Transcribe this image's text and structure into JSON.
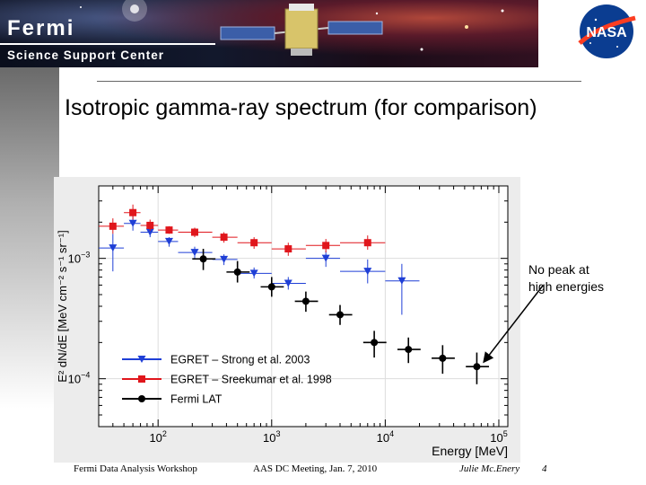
{
  "header": {
    "brand_title": "Fermi",
    "brand_subtitle": "Science Support Center",
    "logo_icon": "nasa-logo",
    "logo_text": "NASA"
  },
  "slide": {
    "title": "Isotropic gamma-ray spectrum (for comparison)",
    "annotation_line1": "No peak at",
    "annotation_line2": "high energies"
  },
  "footer": {
    "left": "Fermi Data Analysis Workshop",
    "center": "AAS DC Meeting,  Jan. 7, 2010",
    "author": "Julie Mc.Enery",
    "page": "4"
  },
  "chart_data": {
    "type": "scatter",
    "title": "",
    "xlabel": "Energy [MeV]",
    "ylabel": "E² dN/dE [MeV cm⁻² s⁻¹ sr⁻¹]",
    "x_scale": "log",
    "y_scale": "log",
    "xlim": [
      30,
      120000
    ],
    "ylim": [
      4e-05,
      0.004
    ],
    "x_ticks": [
      {
        "value": 100,
        "base": "10",
        "exp": "2"
      },
      {
        "value": 1000,
        "base": "10",
        "exp": "3"
      },
      {
        "value": 10000,
        "base": "10",
        "exp": "4"
      },
      {
        "value": 100000,
        "base": "10",
        "exp": "5"
      }
    ],
    "y_ticks": [
      {
        "value": 0.001,
        "base": "10",
        "exp": "−3"
      },
      {
        "value": 0.0001,
        "base": "10",
        "exp": "−4"
      }
    ],
    "legend_position": "bottom-left",
    "series": [
      {
        "name": "EGRET – Strong et al. 2003",
        "color": "#1f3fd6",
        "marker": "triangle-down",
        "points": [
          {
            "x": 40,
            "xlo": 30,
            "xhi": 50,
            "y": 0.00122,
            "ylo": 0.00078,
            "yhi": 0.0016
          },
          {
            "x": 60,
            "xlo": 50,
            "xhi": 70,
            "y": 0.00195,
            "ylo": 0.0017,
            "yhi": 0.00225
          },
          {
            "x": 85,
            "xlo": 70,
            "xhi": 100,
            "y": 0.00165,
            "ylo": 0.0015,
            "yhi": 0.00185
          },
          {
            "x": 125,
            "xlo": 100,
            "xhi": 150,
            "y": 0.00138,
            "ylo": 0.00125,
            "yhi": 0.0015
          },
          {
            "x": 210,
            "xlo": 150,
            "xhi": 300,
            "y": 0.00112,
            "ylo": 0.001,
            "yhi": 0.00125
          },
          {
            "x": 380,
            "xlo": 300,
            "xhi": 500,
            "y": 0.00098,
            "ylo": 0.00088,
            "yhi": 0.00108
          },
          {
            "x": 700,
            "xlo": 500,
            "xhi": 1000,
            "y": 0.00075,
            "ylo": 0.00068,
            "yhi": 0.00084
          },
          {
            "x": 1400,
            "xlo": 1000,
            "xhi": 2000,
            "y": 0.00062,
            "ylo": 0.00055,
            "yhi": 0.0007
          },
          {
            "x": 3000,
            "xlo": 2000,
            "xhi": 4000,
            "y": 0.001,
            "ylo": 0.00085,
            "yhi": 0.00116
          },
          {
            "x": 7000,
            "xlo": 4000,
            "xhi": 10000,
            "y": 0.00078,
            "ylo": 0.00062,
            "yhi": 0.00098
          },
          {
            "x": 14000,
            "xlo": 10000,
            "xhi": 20000,
            "y": 0.00065,
            "ylo": 0.00034,
            "yhi": 0.0009
          }
        ]
      },
      {
        "name": "EGRET – Sreekumar et al. 1998",
        "color": "#e0161c",
        "marker": "square",
        "points": [
          {
            "x": 40,
            "xlo": 30,
            "xhi": 50,
            "y": 0.00185,
            "ylo": 0.0016,
            "yhi": 0.00215
          },
          {
            "x": 60,
            "xlo": 50,
            "xhi": 70,
            "y": 0.0024,
            "ylo": 0.0021,
            "yhi": 0.0028
          },
          {
            "x": 85,
            "xlo": 70,
            "xhi": 100,
            "y": 0.00188,
            "ylo": 0.0017,
            "yhi": 0.0021
          },
          {
            "x": 125,
            "xlo": 100,
            "xhi": 150,
            "y": 0.00172,
            "ylo": 0.0016,
            "yhi": 0.00185
          },
          {
            "x": 210,
            "xlo": 150,
            "xhi": 300,
            "y": 0.00165,
            "ylo": 0.0015,
            "yhi": 0.0018
          },
          {
            "x": 380,
            "xlo": 300,
            "xhi": 500,
            "y": 0.0015,
            "ylo": 0.00135,
            "yhi": 0.00165
          },
          {
            "x": 700,
            "xlo": 500,
            "xhi": 1000,
            "y": 0.00135,
            "ylo": 0.0012,
            "yhi": 0.0015
          },
          {
            "x": 1400,
            "xlo": 1000,
            "xhi": 2000,
            "y": 0.0012,
            "ylo": 0.00105,
            "yhi": 0.00135
          },
          {
            "x": 3000,
            "xlo": 2000,
            "xhi": 4000,
            "y": 0.00128,
            "ylo": 0.00112,
            "yhi": 0.00145
          },
          {
            "x": 7000,
            "xlo": 4000,
            "xhi": 10000,
            "y": 0.00135,
            "ylo": 0.00118,
            "yhi": 0.00155
          }
        ]
      },
      {
        "name": "Fermi LAT",
        "color": "#000000",
        "marker": "circle",
        "points": [
          {
            "x": 250,
            "xlo": 200,
            "xhi": 320,
            "y": 0.00099,
            "ylo": 0.0008,
            "yhi": 0.0012
          },
          {
            "x": 500,
            "xlo": 400,
            "xhi": 640,
            "y": 0.00077,
            "ylo": 0.00063,
            "yhi": 0.00095
          },
          {
            "x": 1000,
            "xlo": 800,
            "xhi": 1280,
            "y": 0.00058,
            "ylo": 0.00048,
            "yhi": 0.0007
          },
          {
            "x": 2000,
            "xlo": 1600,
            "xhi": 2560,
            "y": 0.00044,
            "ylo": 0.00036,
            "yhi": 0.00053
          },
          {
            "x": 4000,
            "xlo": 3200,
            "xhi": 5120,
            "y": 0.00034,
            "ylo": 0.00028,
            "yhi": 0.00041
          },
          {
            "x": 8000,
            "xlo": 6400,
            "xhi": 10240,
            "y": 0.0002,
            "ylo": 0.00015,
            "yhi": 0.00025
          },
          {
            "x": 16000,
            "xlo": 12800,
            "xhi": 20480,
            "y": 0.000175,
            "ylo": 0.000135,
            "yhi": 0.00022
          },
          {
            "x": 32000,
            "xlo": 25600,
            "xhi": 40960,
            "y": 0.000148,
            "ylo": 0.00011,
            "yhi": 0.00019
          },
          {
            "x": 64000,
            "xlo": 51200,
            "xhi": 81920,
            "y": 0.000126,
            "ylo": 9e-05,
            "yhi": 0.000165
          }
        ]
      }
    ]
  }
}
